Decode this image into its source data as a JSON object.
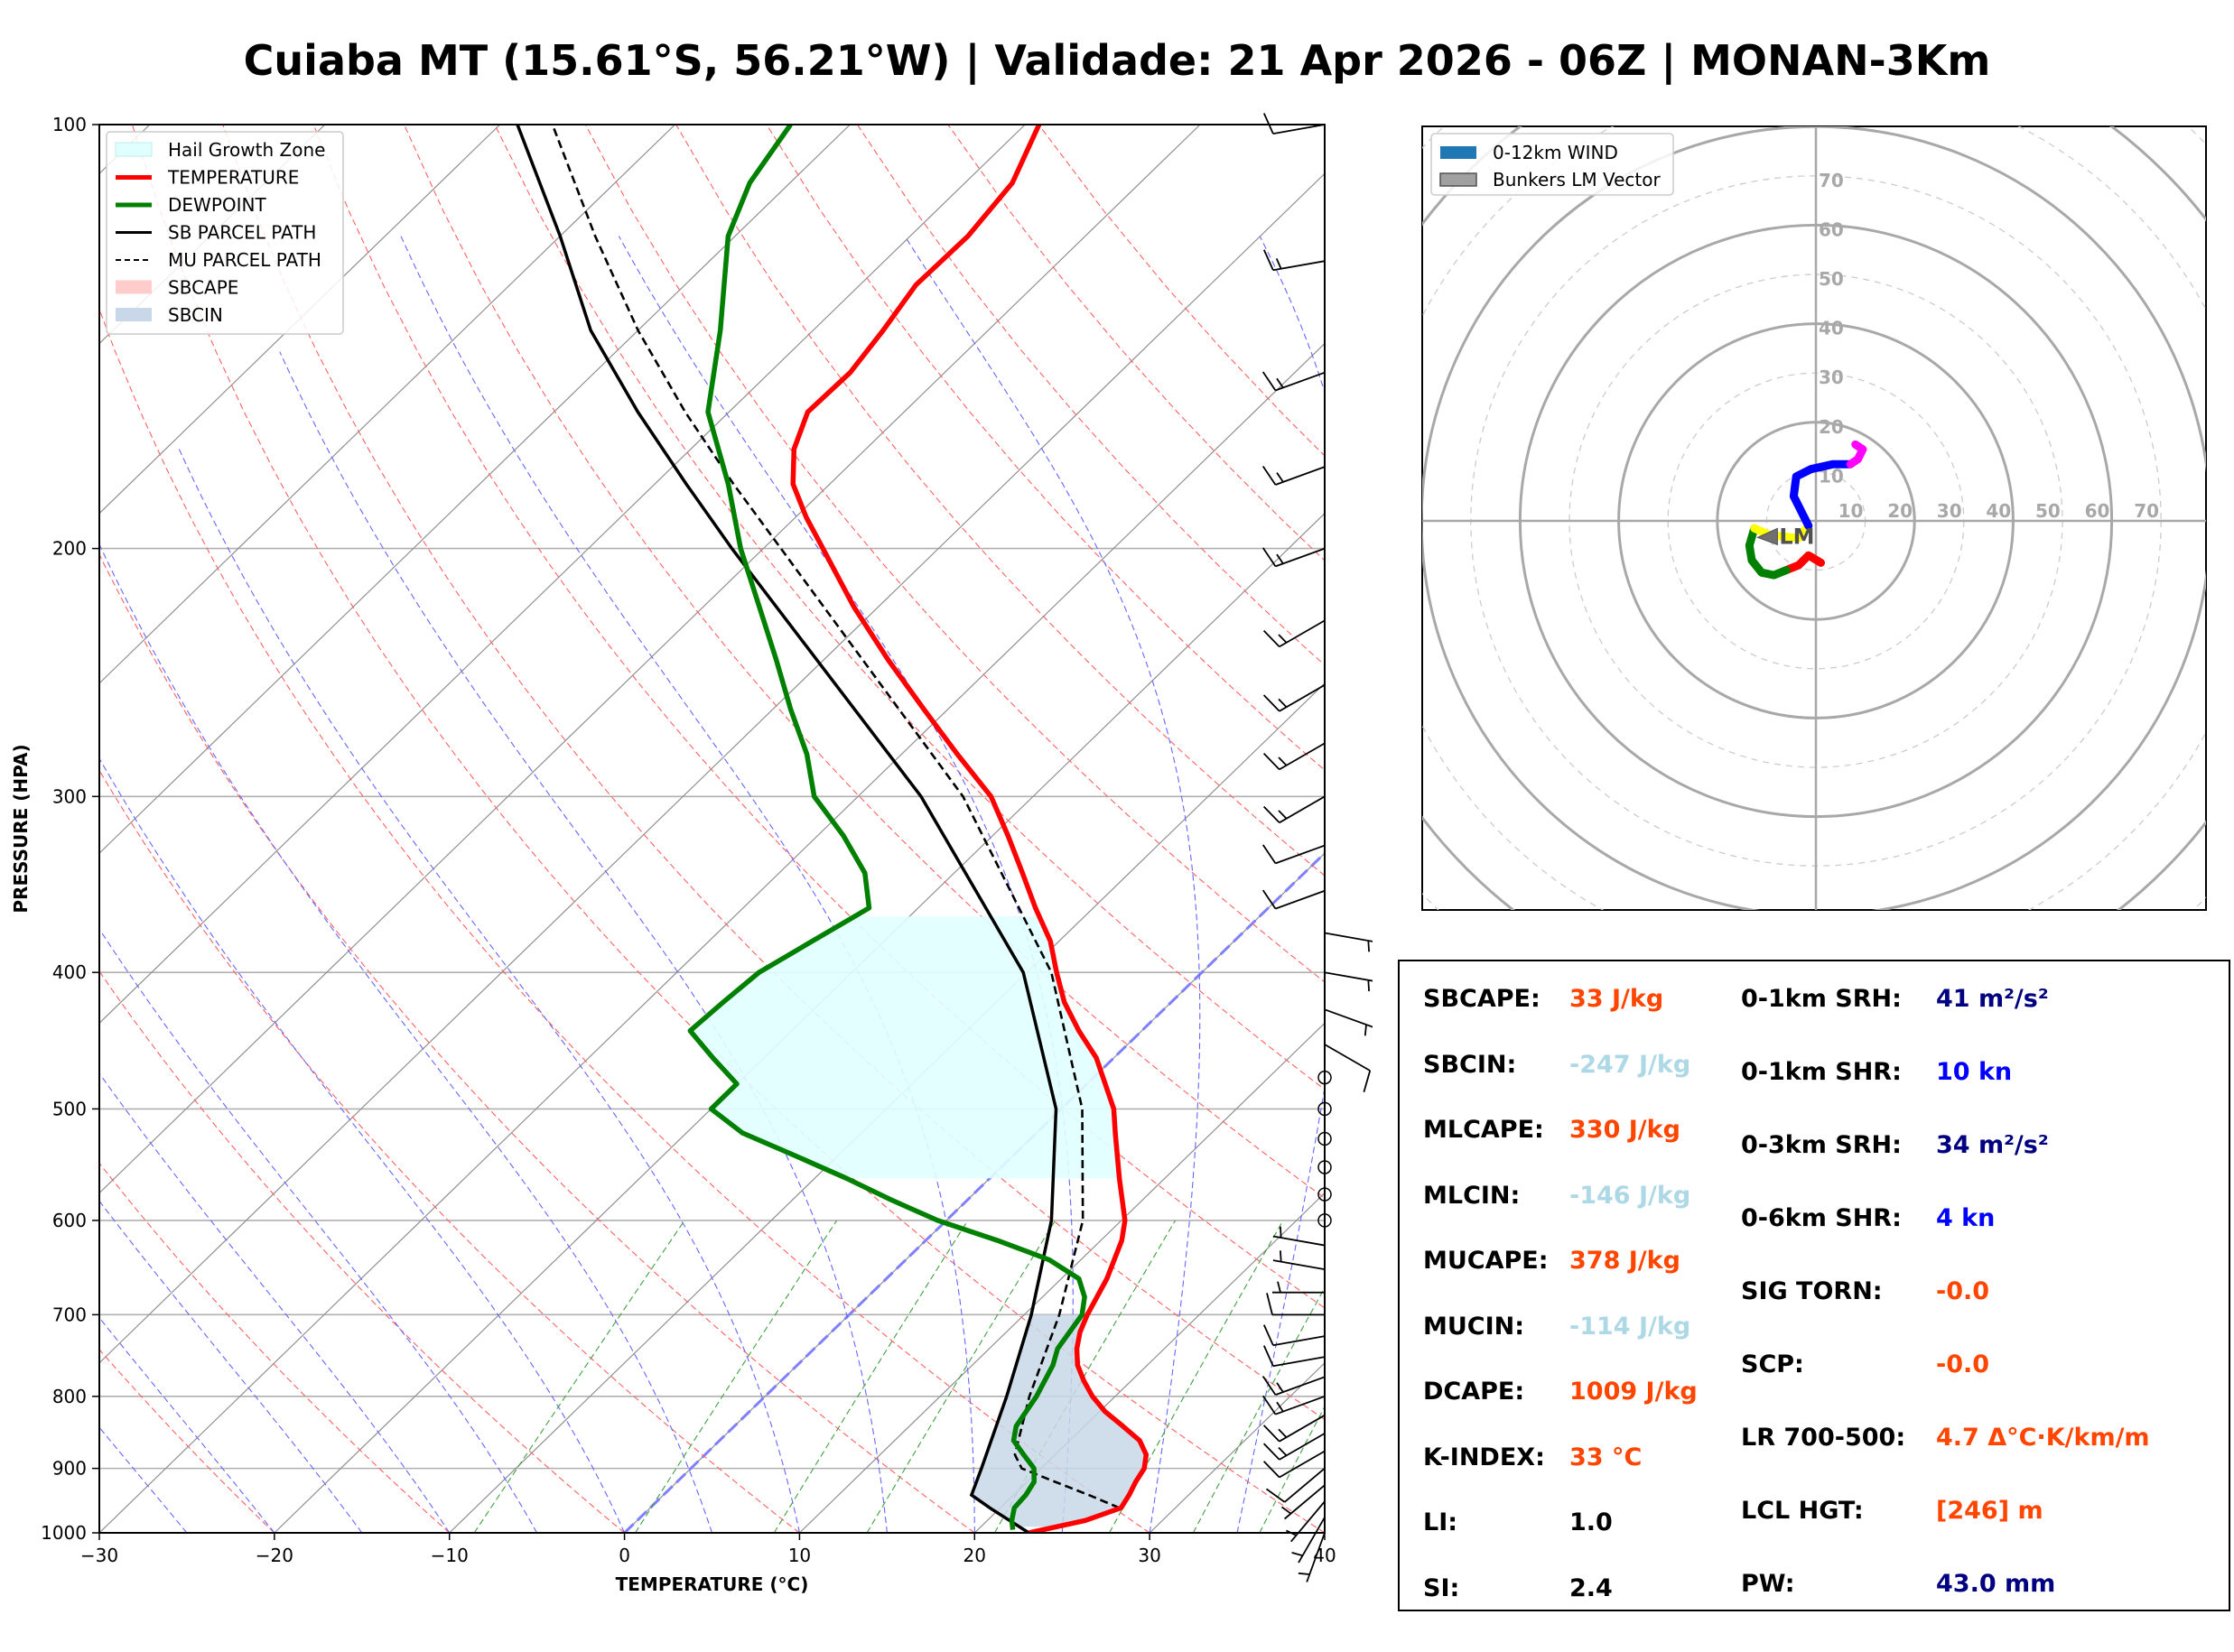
{
  "title": "Cuiaba MT (15.61°S, 56.21°W) | Validade: 21 Apr 2026 - 06Z | MONAN-3Km",
  "colors": {
    "temperature": "#ff0000",
    "dewpoint": "#008000",
    "parcel": "#000000",
    "hail": "#e0ffff",
    "sbcape": "#ffcccc",
    "sbcin": "#c8d8e8",
    "orange": "#ff4500",
    "lightblue": "#add8e6",
    "navy": "#000080",
    "blue": "#0000ff"
  },
  "chart_data": [
    {
      "type": "line",
      "subtype": "skew-t log-p",
      "xlabel": "TEMPERATURE (°C)",
      "ylabel": "PRESSURE (HPA)",
      "xlim": [
        -30,
        40
      ],
      "ylim": [
        1000,
        100
      ],
      "y_scale": "log",
      "x_ticks": [
        "−30",
        "−20",
        "−10",
        "0",
        "10",
        "20",
        "30",
        "40"
      ],
      "y_ticks": [
        "100",
        "200",
        "300",
        "400",
        "500",
        "600",
        "700",
        "800",
        "900",
        "1000"
      ],
      "legend_position": "top-left",
      "legend": [
        "Hail Growth Zone",
        "TEMPERATURE",
        "DEWPOINT",
        "SB PARCEL PATH",
        "MU PARCEL PATH",
        "SBCAPE",
        "SBCIN"
      ],
      "series": [
        {
          "name": "TEMPERATURE",
          "points": [
            [
              1000,
              23.1
            ],
            [
              980,
              25.6
            ],
            [
              960,
              26.9
            ],
            [
              940,
              26.6
            ],
            [
              920,
              26.2
            ],
            [
              900,
              25.9
            ],
            [
              880,
              25.2
            ],
            [
              860,
              24.0
            ],
            [
              840,
              22.2
            ],
            [
              820,
              20.3
            ],
            [
              800,
              18.7
            ],
            [
              780,
              17.3
            ],
            [
              760,
              16.0
            ],
            [
              740,
              15.0
            ],
            [
              720,
              14.2
            ],
            [
              700,
              13.6
            ],
            [
              660,
              12.6
            ],
            [
              620,
              11.2
            ],
            [
              600,
              10.2
            ],
            [
              560,
              7.4
            ],
            [
              520,
              4.5
            ],
            [
              500,
              3.0
            ],
            [
              460,
              -1.0
            ],
            [
              440,
              -3.6
            ],
            [
              420,
              -6.1
            ],
            [
              400,
              -8.3
            ],
            [
              380,
              -10.5
            ],
            [
              360,
              -13.3
            ],
            [
              340,
              -16.1
            ],
            [
              320,
              -19.1
            ],
            [
              300,
              -22.4
            ],
            [
              280,
              -26.8
            ],
            [
              260,
              -31.4
            ],
            [
              240,
              -36.3
            ],
            [
              220,
              -41.4
            ],
            [
              200,
              -46.6
            ],
            [
              190,
              -49.4
            ],
            [
              180,
              -52.1
            ],
            [
              170,
              -54.1
            ],
            [
              160,
              -55.5
            ],
            [
              150,
              -55.4
            ],
            [
              140,
              -56.0
            ],
            [
              130,
              -56.8
            ],
            [
              120,
              -56.7
            ],
            [
              110,
              -57.3
            ],
            [
              100,
              -59.2
            ]
          ]
        },
        {
          "name": "DEWPOINT",
          "points": [
            [
              995,
              22.0
            ],
            [
              980,
              21.4
            ],
            [
              960,
              20.8
            ],
            [
              940,
              20.7
            ],
            [
              920,
              20.4
            ],
            [
              900,
              19.6
            ],
            [
              880,
              18.2
            ],
            [
              860,
              16.8
            ],
            [
              840,
              16.1
            ],
            [
              800,
              15.5
            ],
            [
              760,
              14.6
            ],
            [
              740,
              13.9
            ],
            [
              700,
              13.3
            ],
            [
              680,
              12.4
            ],
            [
              660,
              11.0
            ],
            [
              640,
              8.2
            ],
            [
              620,
              4.1
            ],
            [
              600,
              -0.5
            ],
            [
              580,
              -4.4
            ],
            [
              560,
              -8.2
            ],
            [
              540,
              -12.4
            ],
            [
              520,
              -16.8
            ],
            [
              500,
              -20.0
            ],
            [
              480,
              -20.0
            ],
            [
              460,
              -22.9
            ],
            [
              440,
              -25.8
            ],
            [
              420,
              -25.6
            ],
            [
              400,
              -25.3
            ],
            [
              380,
              -24.1
            ],
            [
              360,
              -22.8
            ],
            [
              340,
              -25.1
            ],
            [
              320,
              -28.5
            ],
            [
              300,
              -32.5
            ],
            [
              280,
              -35.4
            ],
            [
              260,
              -39.0
            ],
            [
              240,
              -42.7
            ],
            [
              220,
              -46.8
            ],
            [
              200,
              -51.3
            ],
            [
              180,
              -55.8
            ],
            [
              160,
              -61.2
            ],
            [
              140,
              -65.3
            ],
            [
              120,
              -70.4
            ],
            [
              110,
              -72.3
            ],
            [
              100,
              -73.4
            ]
          ]
        },
        {
          "name": "SB PARCEL PATH",
          "points": [
            [
              1000,
              23.1
            ],
            [
              960,
              19.4
            ],
            [
              940,
              17.6
            ],
            [
              900,
              16.6
            ],
            [
              800,
              13.8
            ],
            [
              700,
              10.4
            ],
            [
              600,
              6.0
            ],
            [
              500,
              -0.3
            ],
            [
              400,
              -10.2
            ],
            [
              300,
              -26.4
            ],
            [
              200,
              -51.8
            ],
            [
              180,
              -58.2
            ],
            [
              160,
              -65.2
            ],
            [
              140,
              -72.7
            ],
            [
              120,
              -80.0
            ],
            [
              100,
              -89.0
            ]
          ]
        },
        {
          "name": "MU PARCEL PATH",
          "points": [
            [
              960,
              26.8
            ],
            [
              940,
              24.3
            ],
            [
              920,
              21.6
            ],
            [
              900,
              18.9
            ],
            [
              880,
              17.7
            ],
            [
              800,
              15.1
            ],
            [
              700,
              12.0
            ],
            [
              600,
              7.8
            ],
            [
              500,
              1.2
            ],
            [
              400,
              -8.6
            ],
            [
              300,
              -24.0
            ],
            [
              200,
              -49.0
            ],
            [
              180,
              -55.5
            ],
            [
              160,
              -62.5
            ],
            [
              140,
              -70.0
            ],
            [
              120,
              -78.0
            ],
            [
              100,
              -87.0
            ]
          ]
        }
      ],
      "hail_growth_zone": {
        "p_bottom": 560,
        "p_top": 365
      },
      "wind_barbs": {
        "pressures": [
          1000,
          975,
          950,
          925,
          900,
          875,
          850,
          825,
          800,
          775,
          750,
          725,
          700,
          675,
          650,
          625,
          600,
          575,
          550,
          525,
          500,
          475,
          450,
          425,
          400,
          375,
          350,
          325,
          300,
          275,
          250,
          225,
          200,
          175,
          150,
          125,
          100
        ],
        "speed_kn": [
          5,
          5,
          5,
          5,
          10,
          10,
          15,
          15,
          15,
          15,
          10,
          10,
          10,
          5,
          5,
          5,
          0,
          0,
          0,
          0,
          0,
          0,
          10,
          5,
          5,
          5,
          10,
          10,
          15,
          15,
          15,
          15,
          15,
          15,
          15,
          15,
          10
        ],
        "direction_deg": [
          200,
          210,
          220,
          230,
          230,
          240,
          240,
          240,
          250,
          250,
          260,
          260,
          270,
          270,
          280,
          280,
          0,
          0,
          0,
          0,
          0,
          0,
          120,
          110,
          100,
          100,
          250,
          250,
          240,
          240,
          240,
          240,
          250,
          250,
          250,
          260,
          260
        ]
      }
    },
    {
      "type": "scatter",
      "subtype": "hodograph",
      "ring_labels": [
        "10",
        "20",
        "30",
        "40",
        "50",
        "60",
        "70"
      ],
      "legend_position": "top-left",
      "legend": [
        "0-12km WIND",
        "Bunkers LM Vector"
      ],
      "lm_label": "LM",
      "lm_vector": [
        -10,
        -3
      ],
      "segments": [
        {
          "color": "#ff0000",
          "points": [
            [
              1.0,
              -8.5
            ],
            [
              -1.5,
              -7.0
            ],
            [
              -3.5,
              -9.0
            ],
            [
              -6.0,
              -10.0
            ]
          ]
        },
        {
          "color": "#008000",
          "points": [
            [
              -6.0,
              -10.0
            ],
            [
              -8.5,
              -11.0
            ],
            [
              -11.0,
              -10.5
            ],
            [
              -13.0,
              -8.0
            ],
            [
              -13.5,
              -5.0
            ],
            [
              -12.5,
              -1.5
            ]
          ]
        },
        {
          "color": "#ffff00",
          "points": [
            [
              -12.5,
              -1.5
            ],
            [
              -9.5,
              -2.8
            ],
            [
              -6.5,
              -3.2
            ],
            [
              -3.5,
              -3.5
            ],
            [
              -1.5,
              -1.0
            ]
          ]
        },
        {
          "color": "#0000ff",
          "points": [
            [
              -1.5,
              -1.0
            ],
            [
              -3.0,
              2.0
            ],
            [
              -4.5,
              5.0
            ],
            [
              -4.0,
              9.0
            ],
            [
              -1.0,
              10.5
            ],
            [
              3.5,
              11.5
            ],
            [
              7.0,
              11.5
            ]
          ]
        },
        {
          "color": "#ff00ff",
          "points": [
            [
              7.0,
              11.5
            ],
            [
              8.5,
              12.5
            ],
            [
              9.5,
              14.5
            ],
            [
              8.0,
              15.5
            ]
          ]
        }
      ]
    }
  ],
  "indices": {
    "left": [
      {
        "label": "SBCAPE:",
        "value": "33 J/kg",
        "color": "#ff4500"
      },
      {
        "label": "SBCIN:",
        "value": "-247 J/kg",
        "color": "#add8e6"
      },
      {
        "label": "MLCAPE:",
        "value": "330 J/kg",
        "color": "#ff4500"
      },
      {
        "label": "MLCIN:",
        "value": "-146 J/kg",
        "color": "#add8e6"
      },
      {
        "label": "MUCAPE:",
        "value": "378 J/kg",
        "color": "#ff4500"
      },
      {
        "label": "MUCIN:",
        "value": "-114 J/kg",
        "color": "#add8e6"
      },
      {
        "label": "DCAPE:",
        "value": "1009 J/kg",
        "color": "#ff4500"
      },
      {
        "label": "K-INDEX:",
        "value": "33 °C",
        "color": "#ff4500"
      },
      {
        "label": "LI:",
        "value": "1.0",
        "color": "#000000"
      },
      {
        "label": "SI:",
        "value": "2.4",
        "color": "#000000"
      }
    ],
    "right": [
      {
        "label": "0-1km SRH:",
        "value": "41 m²/s²",
        "color": "#000080"
      },
      {
        "label": "0-1km SHR:",
        "value": "10 kn",
        "color": "#0000ff"
      },
      {
        "label": "0-3km SRH:",
        "value": "34 m²/s²",
        "color": "#000080"
      },
      {
        "label": "0-6km SHR:",
        "value": "4 kn",
        "color": "#0000ff"
      },
      {
        "label": "SIG TORN:",
        "value": "-0.0",
        "color": "#ff4500"
      },
      {
        "label": "SCP:",
        "value": "-0.0",
        "color": "#ff4500"
      },
      {
        "label": "LR 700-500:",
        "value": "4.7 Δ°C·K/km/m",
        "color": "#ff4500"
      },
      {
        "label": "LCL HGT:",
        "value": "[246] m",
        "color": "#ff4500"
      },
      {
        "label": "PW:",
        "value": "43.0 mm",
        "color": "#000080"
      }
    ]
  }
}
